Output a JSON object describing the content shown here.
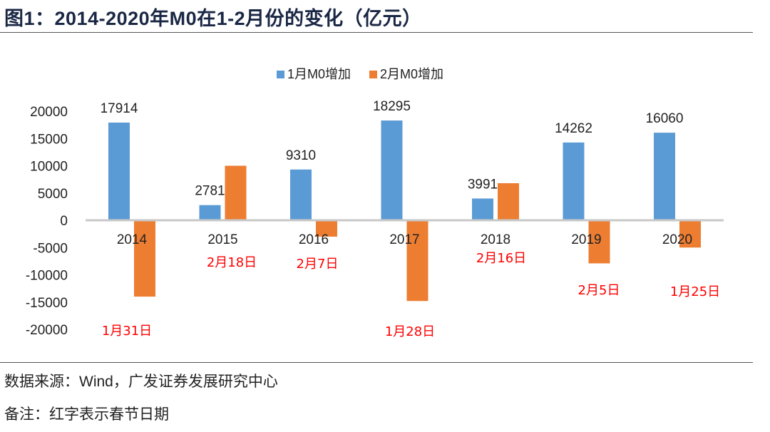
{
  "title": "图1：2014-2020年M0在1-2月份的变化（亿元）",
  "footnotes": {
    "source": "数据来源：Wind，广发证券发展研究中心",
    "note": "备注：红字表示春节日期"
  },
  "chart_data": {
    "type": "bar",
    "title": "图1：2014-2020年M0在1-2月份的变化（亿元）",
    "categories": [
      "2014",
      "2015",
      "2016",
      "2017",
      "2018",
      "2019",
      "2020"
    ],
    "series": [
      {
        "name": "1月M0增加",
        "color": "#5B9BD5",
        "values": [
          17914,
          2781,
          9310,
          18295,
          3991,
          14262,
          16060
        ],
        "labels_shown": true
      },
      {
        "name": "2月M0增加",
        "color": "#ED7D31",
        "values": [
          -14000,
          10000,
          -3000,
          -14800,
          6800,
          -7900,
          -5000
        ],
        "labels_shown": false
      }
    ],
    "annotations": [
      "1月31日",
      "2月18日",
      "2月7日",
      "1月28日",
      "2月16日",
      "2月5日",
      "1月25日"
    ],
    "annotation_color": "#FF0000",
    "yticks": [
      "20000",
      "15000",
      "10000",
      "5000",
      "0",
      "-5000",
      "-10000",
      "-15000",
      "-20000"
    ],
    "ylim": [
      -20000,
      20000
    ],
    "legend": "top",
    "grid": false
  }
}
